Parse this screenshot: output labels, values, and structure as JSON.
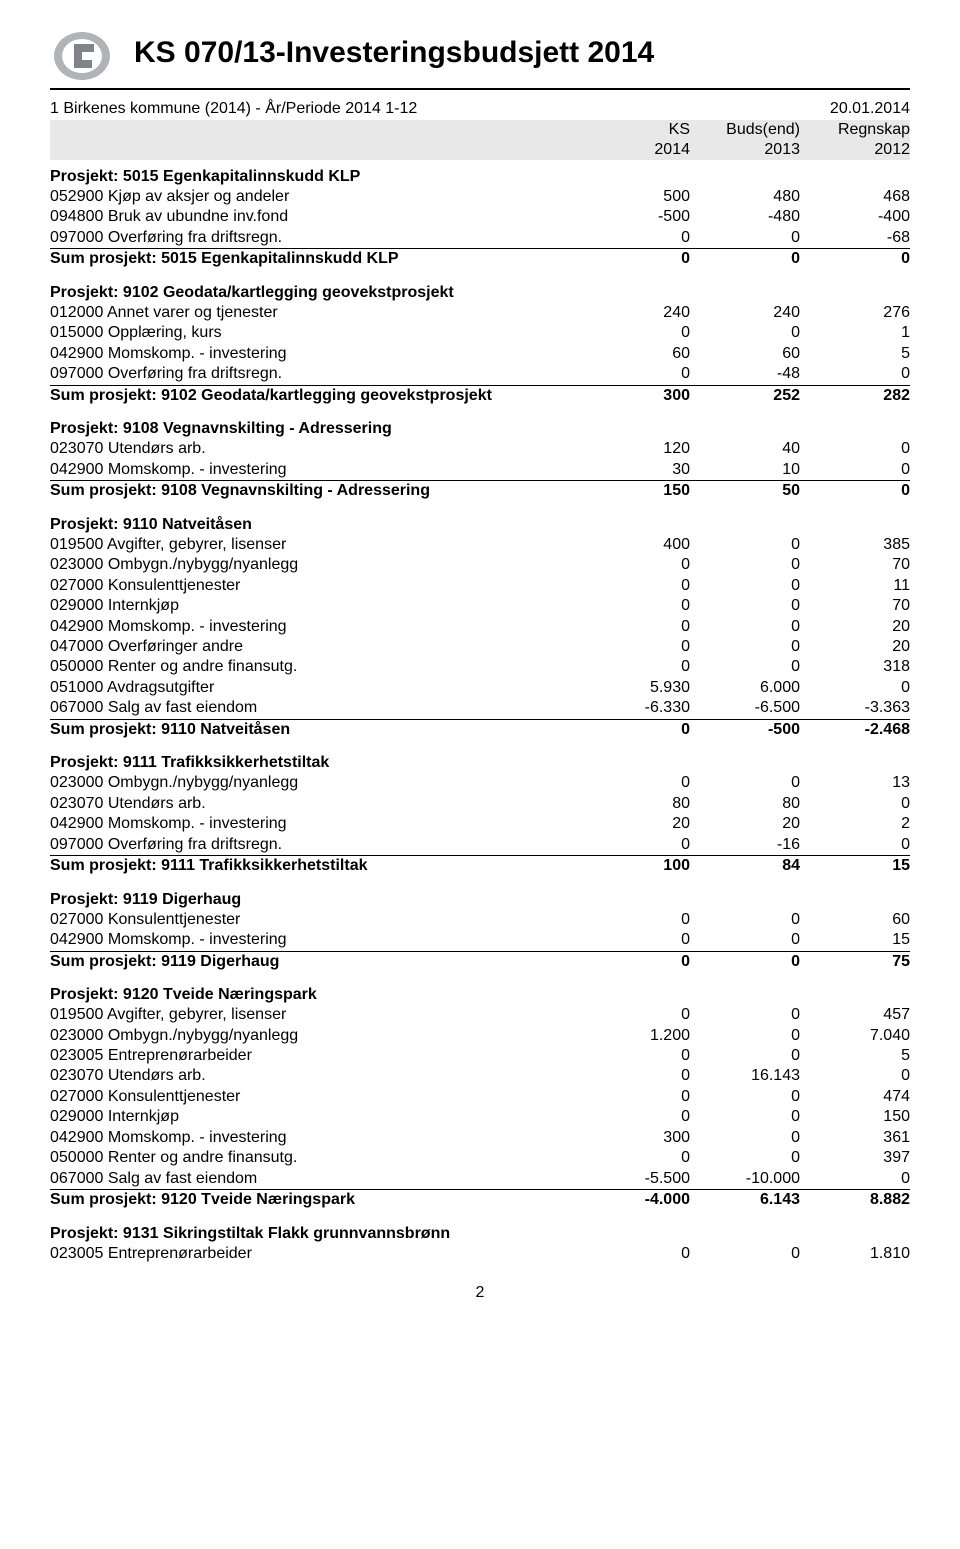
{
  "header": {
    "title": "KS 070/13-Investeringsbudsjett 2014",
    "meta_left": "1 Birkenes kommune (2014) - År/Periode 2014 1-12",
    "meta_right": "20.01.2014",
    "col1": "KS",
    "col2": "Buds(end)",
    "col3": "Regnskap",
    "year1": "2014",
    "year2": "2013",
    "year3": "2012"
  },
  "page_number": "2",
  "sections": [
    {
      "title": "Prosjekt: 5015 Egenkapitalinnskudd KLP",
      "rows": [
        {
          "label": "052900 Kjøp av aksjer og andeler",
          "c1": "500",
          "c2": "480",
          "c3": "468",
          "u": false
        },
        {
          "label": "094800 Bruk av ubundne inv.fond",
          "c1": "-500",
          "c2": "-480",
          "c3": "-400",
          "u": false
        },
        {
          "label": "097000 Overføring fra driftsregn.",
          "c1": "0",
          "c2": "0",
          "c3": "-68",
          "u": true
        }
      ],
      "sum": {
        "label": "Sum prosjekt: 5015 Egenkapitalinnskudd KLP",
        "c1": "0",
        "c2": "0",
        "c3": "0"
      }
    },
    {
      "title": "Prosjekt: 9102 Geodata/kartlegging geovekstprosjekt",
      "rows": [
        {
          "label": "012000 Annet varer og tjenester",
          "c1": "240",
          "c2": "240",
          "c3": "276",
          "u": false
        },
        {
          "label": "015000 Opplæring, kurs",
          "c1": "0",
          "c2": "0",
          "c3": "1",
          "u": false
        },
        {
          "label": "042900 Momskomp. - investering",
          "c1": "60",
          "c2": "60",
          "c3": "5",
          "u": false
        },
        {
          "label": "097000 Overføring fra driftsregn.",
          "c1": "0",
          "c2": "-48",
          "c3": "0",
          "u": true
        }
      ],
      "sum": {
        "label": "Sum prosjekt: 9102 Geodata/kartlegging geovekstprosjekt",
        "c1": "300",
        "c2": "252",
        "c3": "282"
      }
    },
    {
      "title": "Prosjekt: 9108 Vegnavnskilting - Adressering",
      "rows": [
        {
          "label": "023070 Utendørs arb.",
          "c1": "120",
          "c2": "40",
          "c3": "0",
          "u": false
        },
        {
          "label": "042900 Momskomp. - investering",
          "c1": "30",
          "c2": "10",
          "c3": "0",
          "u": true
        }
      ],
      "sum": {
        "label": "Sum prosjekt: 9108 Vegnavnskilting - Adressering",
        "c1": "150",
        "c2": "50",
        "c3": "0"
      }
    },
    {
      "title": "Prosjekt: 9110 Natveitåsen",
      "rows": [
        {
          "label": "019500 Avgifter, gebyrer, lisenser",
          "c1": "400",
          "c2": "0",
          "c3": "385",
          "u": false
        },
        {
          "label": "023000 Ombygn./nybygg/nyanlegg",
          "c1": "0",
          "c2": "0",
          "c3": "70",
          "u": false
        },
        {
          "label": "027000 Konsulenttjenester",
          "c1": "0",
          "c2": "0",
          "c3": "11",
          "u": false
        },
        {
          "label": "029000 Internkjøp",
          "c1": "0",
          "c2": "0",
          "c3": "70",
          "u": false
        },
        {
          "label": "042900 Momskomp. - investering",
          "c1": "0",
          "c2": "0",
          "c3": "20",
          "u": false
        },
        {
          "label": "047000 Overføringer andre",
          "c1": "0",
          "c2": "0",
          "c3": "20",
          "u": false
        },
        {
          "label": "050000 Renter og andre finansutg.",
          "c1": "0",
          "c2": "0",
          "c3": "318",
          "u": false
        },
        {
          "label": "051000 Avdragsutgifter",
          "c1": "5.930",
          "c2": "6.000",
          "c3": "0",
          "u": false
        },
        {
          "label": "067000 Salg av fast eiendom",
          "c1": "-6.330",
          "c2": "-6.500",
          "c3": "-3.363",
          "u": true
        }
      ],
      "sum": {
        "label": "Sum prosjekt: 9110 Natveitåsen",
        "c1": "0",
        "c2": "-500",
        "c3": "-2.468"
      }
    },
    {
      "title": "Prosjekt: 9111 Trafikksikkerhetstiltak",
      "rows": [
        {
          "label": "023000 Ombygn./nybygg/nyanlegg",
          "c1": "0",
          "c2": "0",
          "c3": "13",
          "u": false
        },
        {
          "label": "023070 Utendørs arb.",
          "c1": "80",
          "c2": "80",
          "c3": "0",
          "u": false
        },
        {
          "label": "042900 Momskomp. - investering",
          "c1": "20",
          "c2": "20",
          "c3": "2",
          "u": false
        },
        {
          "label": "097000 Overføring fra driftsregn.",
          "c1": "0",
          "c2": "-16",
          "c3": "0",
          "u": true
        }
      ],
      "sum": {
        "label": "Sum prosjekt: 9111 Trafikksikkerhetstiltak",
        "c1": "100",
        "c2": "84",
        "c3": "15"
      }
    },
    {
      "title": "Prosjekt: 9119 Digerhaug",
      "rows": [
        {
          "label": "027000 Konsulenttjenester",
          "c1": "0",
          "c2": "0",
          "c3": "60",
          "u": false
        },
        {
          "label": "042900 Momskomp. - investering",
          "c1": "0",
          "c2": "0",
          "c3": "15",
          "u": true
        }
      ],
      "sum": {
        "label": "Sum prosjekt: 9119 Digerhaug",
        "c1": "0",
        "c2": "0",
        "c3": "75"
      }
    },
    {
      "title": "Prosjekt: 9120 Tveide Næringspark",
      "rows": [
        {
          "label": "019500 Avgifter, gebyrer, lisenser",
          "c1": "0",
          "c2": "0",
          "c3": "457",
          "u": false
        },
        {
          "label": "023000 Ombygn./nybygg/nyanlegg",
          "c1": "1.200",
          "c2": "0",
          "c3": "7.040",
          "u": false
        },
        {
          "label": "023005 Entreprenørarbeider",
          "c1": "0",
          "c2": "0",
          "c3": "5",
          "u": false
        },
        {
          "label": "023070 Utendørs arb.",
          "c1": "0",
          "c2": "16.143",
          "c3": "0",
          "u": false
        },
        {
          "label": "027000 Konsulenttjenester",
          "c1": "0",
          "c2": "0",
          "c3": "474",
          "u": false
        },
        {
          "label": "029000 Internkjøp",
          "c1": "0",
          "c2": "0",
          "c3": "150",
          "u": false
        },
        {
          "label": "042900 Momskomp. - investering",
          "c1": "300",
          "c2": "0",
          "c3": "361",
          "u": false
        },
        {
          "label": "050000 Renter og andre finansutg.",
          "c1": "0",
          "c2": "0",
          "c3": "397",
          "u": false
        },
        {
          "label": "067000 Salg av fast eiendom",
          "c1": "-5.500",
          "c2": "-10.000",
          "c3": "0",
          "u": true
        }
      ],
      "sum": {
        "label": "Sum prosjekt: 9120 Tveide Næringspark",
        "c1": "-4.000",
        "c2": "6.143",
        "c3": "8.882"
      }
    },
    {
      "title": "Prosjekt: 9131 Sikringstiltak Flakk grunnvannsbrønn",
      "rows": [
        {
          "label": "023005 Entreprenørarbeider",
          "c1": "0",
          "c2": "0",
          "c3": "1.810",
          "u": false
        }
      ]
    }
  ]
}
